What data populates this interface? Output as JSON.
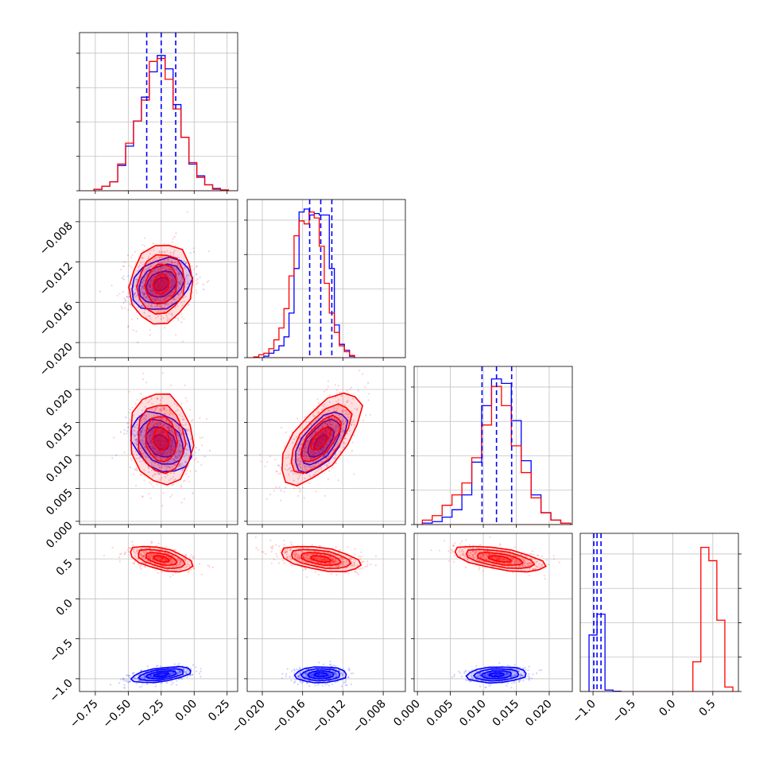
{
  "chart_data": {
    "type": "corner",
    "variables": [
      {
        "ticks": [
          -0.75,
          -0.5,
          -0.25,
          0.0,
          0.25
        ],
        "tick_labels": [
          "−0.75",
          "−0.50",
          "−0.25",
          "0.00",
          "0.25"
        ],
        "range": [
          -0.87,
          0.33
        ]
      },
      {
        "ticks": [
          -0.02,
          -0.016,
          -0.012,
          -0.008
        ],
        "tick_labels": [
          "−0.020",
          "−0.016",
          "−0.012",
          "−0.008"
        ],
        "range": [
          -0.0215,
          -0.0058
        ]
      },
      {
        "ticks": [
          0.0,
          0.005,
          0.01,
          0.015,
          0.02
        ],
        "tick_labels": [
          "0.000",
          "0.005",
          "0.010",
          "0.015",
          "0.020"
        ],
        "range": [
          -0.0005,
          0.0235
        ]
      },
      {
        "ticks": [
          -1.0,
          -0.5,
          0.0,
          0.5
        ],
        "tick_labels": [
          "−1.0",
          "−0.5",
          "0.0",
          "0.5"
        ],
        "range": [
          -1.16,
          0.82
        ]
      }
    ],
    "grid": true,
    "series": [
      {
        "color": "#0000ff",
        "centers": [
          -0.25,
          -0.0142,
          0.012,
          -0.95
        ],
        "sigmas": [
          0.115,
          0.0013,
          0.0023,
          0.05
        ],
        "corr": [
          [
            1,
            0.25,
            -0.3,
            0.5
          ],
          [
            0.25,
            1,
            0.6,
            0.05
          ],
          [
            -0.3,
            0.6,
            1,
            0.15
          ],
          [
            0.5,
            0.05,
            0.15,
            1
          ]
        ],
        "quantile_lines": [
          [
            -0.36,
            -0.25,
            -0.14
          ],
          [
            -0.0153,
            -0.0142,
            -0.0131
          ],
          [
            0.0098,
            0.012,
            0.0143
          ],
          [
            -0.99,
            -0.95,
            -0.9
          ]
        ]
      },
      {
        "color": "#ff0000",
        "centers": [
          -0.25,
          -0.0142,
          0.0125,
          0.5
        ],
        "sigmas": [
          0.12,
          0.002,
          0.0035,
          0.08
        ],
        "corr": [
          [
            1,
            0.1,
            -0.1,
            -0.5
          ],
          [
            0.1,
            1,
            0.65,
            -0.45
          ],
          [
            -0.1,
            0.65,
            1,
            -0.55
          ],
          [
            -0.5,
            -0.45,
            -0.55,
            1
          ]
        ],
        "quantile_lines": null
      }
    ],
    "histograms": [
      {
        "blue": [
          [
            -0.73,
            0.01
          ],
          [
            -0.67,
            0.03
          ],
          [
            -0.61,
            0.06
          ],
          [
            -0.55,
            0.17
          ],
          [
            -0.49,
            0.3
          ],
          [
            -0.43,
            0.47
          ],
          [
            -0.37,
            0.63
          ],
          [
            -0.31,
            0.8
          ],
          [
            -0.25,
            0.91
          ],
          [
            -0.19,
            0.82
          ],
          [
            -0.13,
            0.58
          ],
          [
            -0.07,
            0.36
          ],
          [
            -0.01,
            0.18
          ],
          [
            0.05,
            0.1
          ],
          [
            0.11,
            0.04
          ],
          [
            0.17,
            0.015
          ],
          [
            0.23,
            0.005
          ]
        ],
        "red": [
          [
            -0.73,
            0.01
          ],
          [
            -0.67,
            0.03
          ],
          [
            -0.61,
            0.06
          ],
          [
            -0.55,
            0.18
          ],
          [
            -0.49,
            0.32
          ],
          [
            -0.43,
            0.47
          ],
          [
            -0.37,
            0.61
          ],
          [
            -0.31,
            0.87
          ],
          [
            -0.25,
            0.89
          ],
          [
            -0.19,
            0.75
          ],
          [
            -0.13,
            0.55
          ],
          [
            -0.07,
            0.36
          ],
          [
            -0.01,
            0.19
          ],
          [
            0.05,
            0.09
          ],
          [
            0.11,
            0.04
          ],
          [
            0.17,
            0.01
          ],
          [
            0.23,
            0.005
          ]
        ]
      },
      {
        "blue": [
          [
            -0.0206,
            0.0
          ],
          [
            -0.0201,
            0.0
          ],
          [
            -0.0196,
            0.01
          ],
          [
            -0.0191,
            0.03
          ],
          [
            -0.0186,
            0.05
          ],
          [
            -0.0181,
            0.08
          ],
          [
            -0.0176,
            0.14
          ],
          [
            -0.0171,
            0.3
          ],
          [
            -0.0166,
            0.6
          ],
          [
            -0.0161,
            0.98
          ],
          [
            -0.0156,
            1.0
          ],
          [
            -0.0151,
            0.96
          ],
          [
            -0.0146,
            0.97
          ],
          [
            -0.0141,
            0.96
          ],
          [
            -0.0136,
            0.96
          ],
          [
            -0.0131,
            0.6
          ],
          [
            -0.0126,
            0.22
          ],
          [
            -0.0121,
            0.09
          ],
          [
            -0.0116,
            0.05
          ],
          [
            -0.0111,
            0.01
          ]
        ],
        "red": [
          [
            -0.0206,
            0.005
          ],
          [
            -0.0201,
            0.02
          ],
          [
            -0.0196,
            0.03
          ],
          [
            -0.0191,
            0.06
          ],
          [
            -0.0186,
            0.12
          ],
          [
            -0.0181,
            0.2
          ],
          [
            -0.0176,
            0.33
          ],
          [
            -0.0171,
            0.55
          ],
          [
            -0.0166,
            0.82
          ],
          [
            -0.0161,
            0.92
          ],
          [
            -0.0156,
            0.9
          ],
          [
            -0.0151,
            0.98
          ],
          [
            -0.0146,
            0.94
          ],
          [
            -0.0141,
            0.75
          ],
          [
            -0.0136,
            0.5
          ],
          [
            -0.0131,
            0.3
          ],
          [
            -0.0126,
            0.17
          ],
          [
            -0.0121,
            0.08
          ],
          [
            -0.0116,
            0.04
          ],
          [
            -0.0111,
            0.015
          ]
        ]
      },
      {
        "blue": [
          [
            0.0015,
            0.01
          ],
          [
            0.003,
            0.02
          ],
          [
            0.0045,
            0.05
          ],
          [
            0.006,
            0.1
          ],
          [
            0.0075,
            0.2
          ],
          [
            0.009,
            0.42
          ],
          [
            0.0105,
            0.8
          ],
          [
            0.012,
            0.98
          ],
          [
            0.0135,
            0.95
          ],
          [
            0.015,
            0.7
          ],
          [
            0.0165,
            0.43
          ],
          [
            0.018,
            0.2
          ],
          [
            0.0195,
            0.08
          ],
          [
            0.021,
            0.03
          ],
          [
            0.0225,
            0.01
          ]
        ],
        "red": [
          [
            0.0015,
            0.03
          ],
          [
            0.003,
            0.06
          ],
          [
            0.0045,
            0.13
          ],
          [
            0.006,
            0.2
          ],
          [
            0.0075,
            0.28
          ],
          [
            0.009,
            0.45
          ],
          [
            0.0105,
            0.67
          ],
          [
            0.012,
            0.93
          ],
          [
            0.0135,
            0.8
          ],
          [
            0.015,
            0.53
          ],
          [
            0.0165,
            0.35
          ],
          [
            0.018,
            0.18
          ],
          [
            0.0195,
            0.08
          ],
          [
            0.021,
            0.03
          ],
          [
            0.0225,
            0.01
          ]
        ]
      },
      {
        "blue": [
          [
            -1.0,
            0.38
          ],
          [
            -0.9,
            0.52
          ],
          [
            -0.8,
            0.01
          ],
          [
            -0.7,
            0.002
          ]
        ],
        "red": [
          [
            0.3,
            0.2
          ],
          [
            0.4,
            0.97
          ],
          [
            0.5,
            0.88
          ],
          [
            0.6,
            0.48
          ],
          [
            0.7,
            0.03
          ]
        ]
      }
    ]
  }
}
